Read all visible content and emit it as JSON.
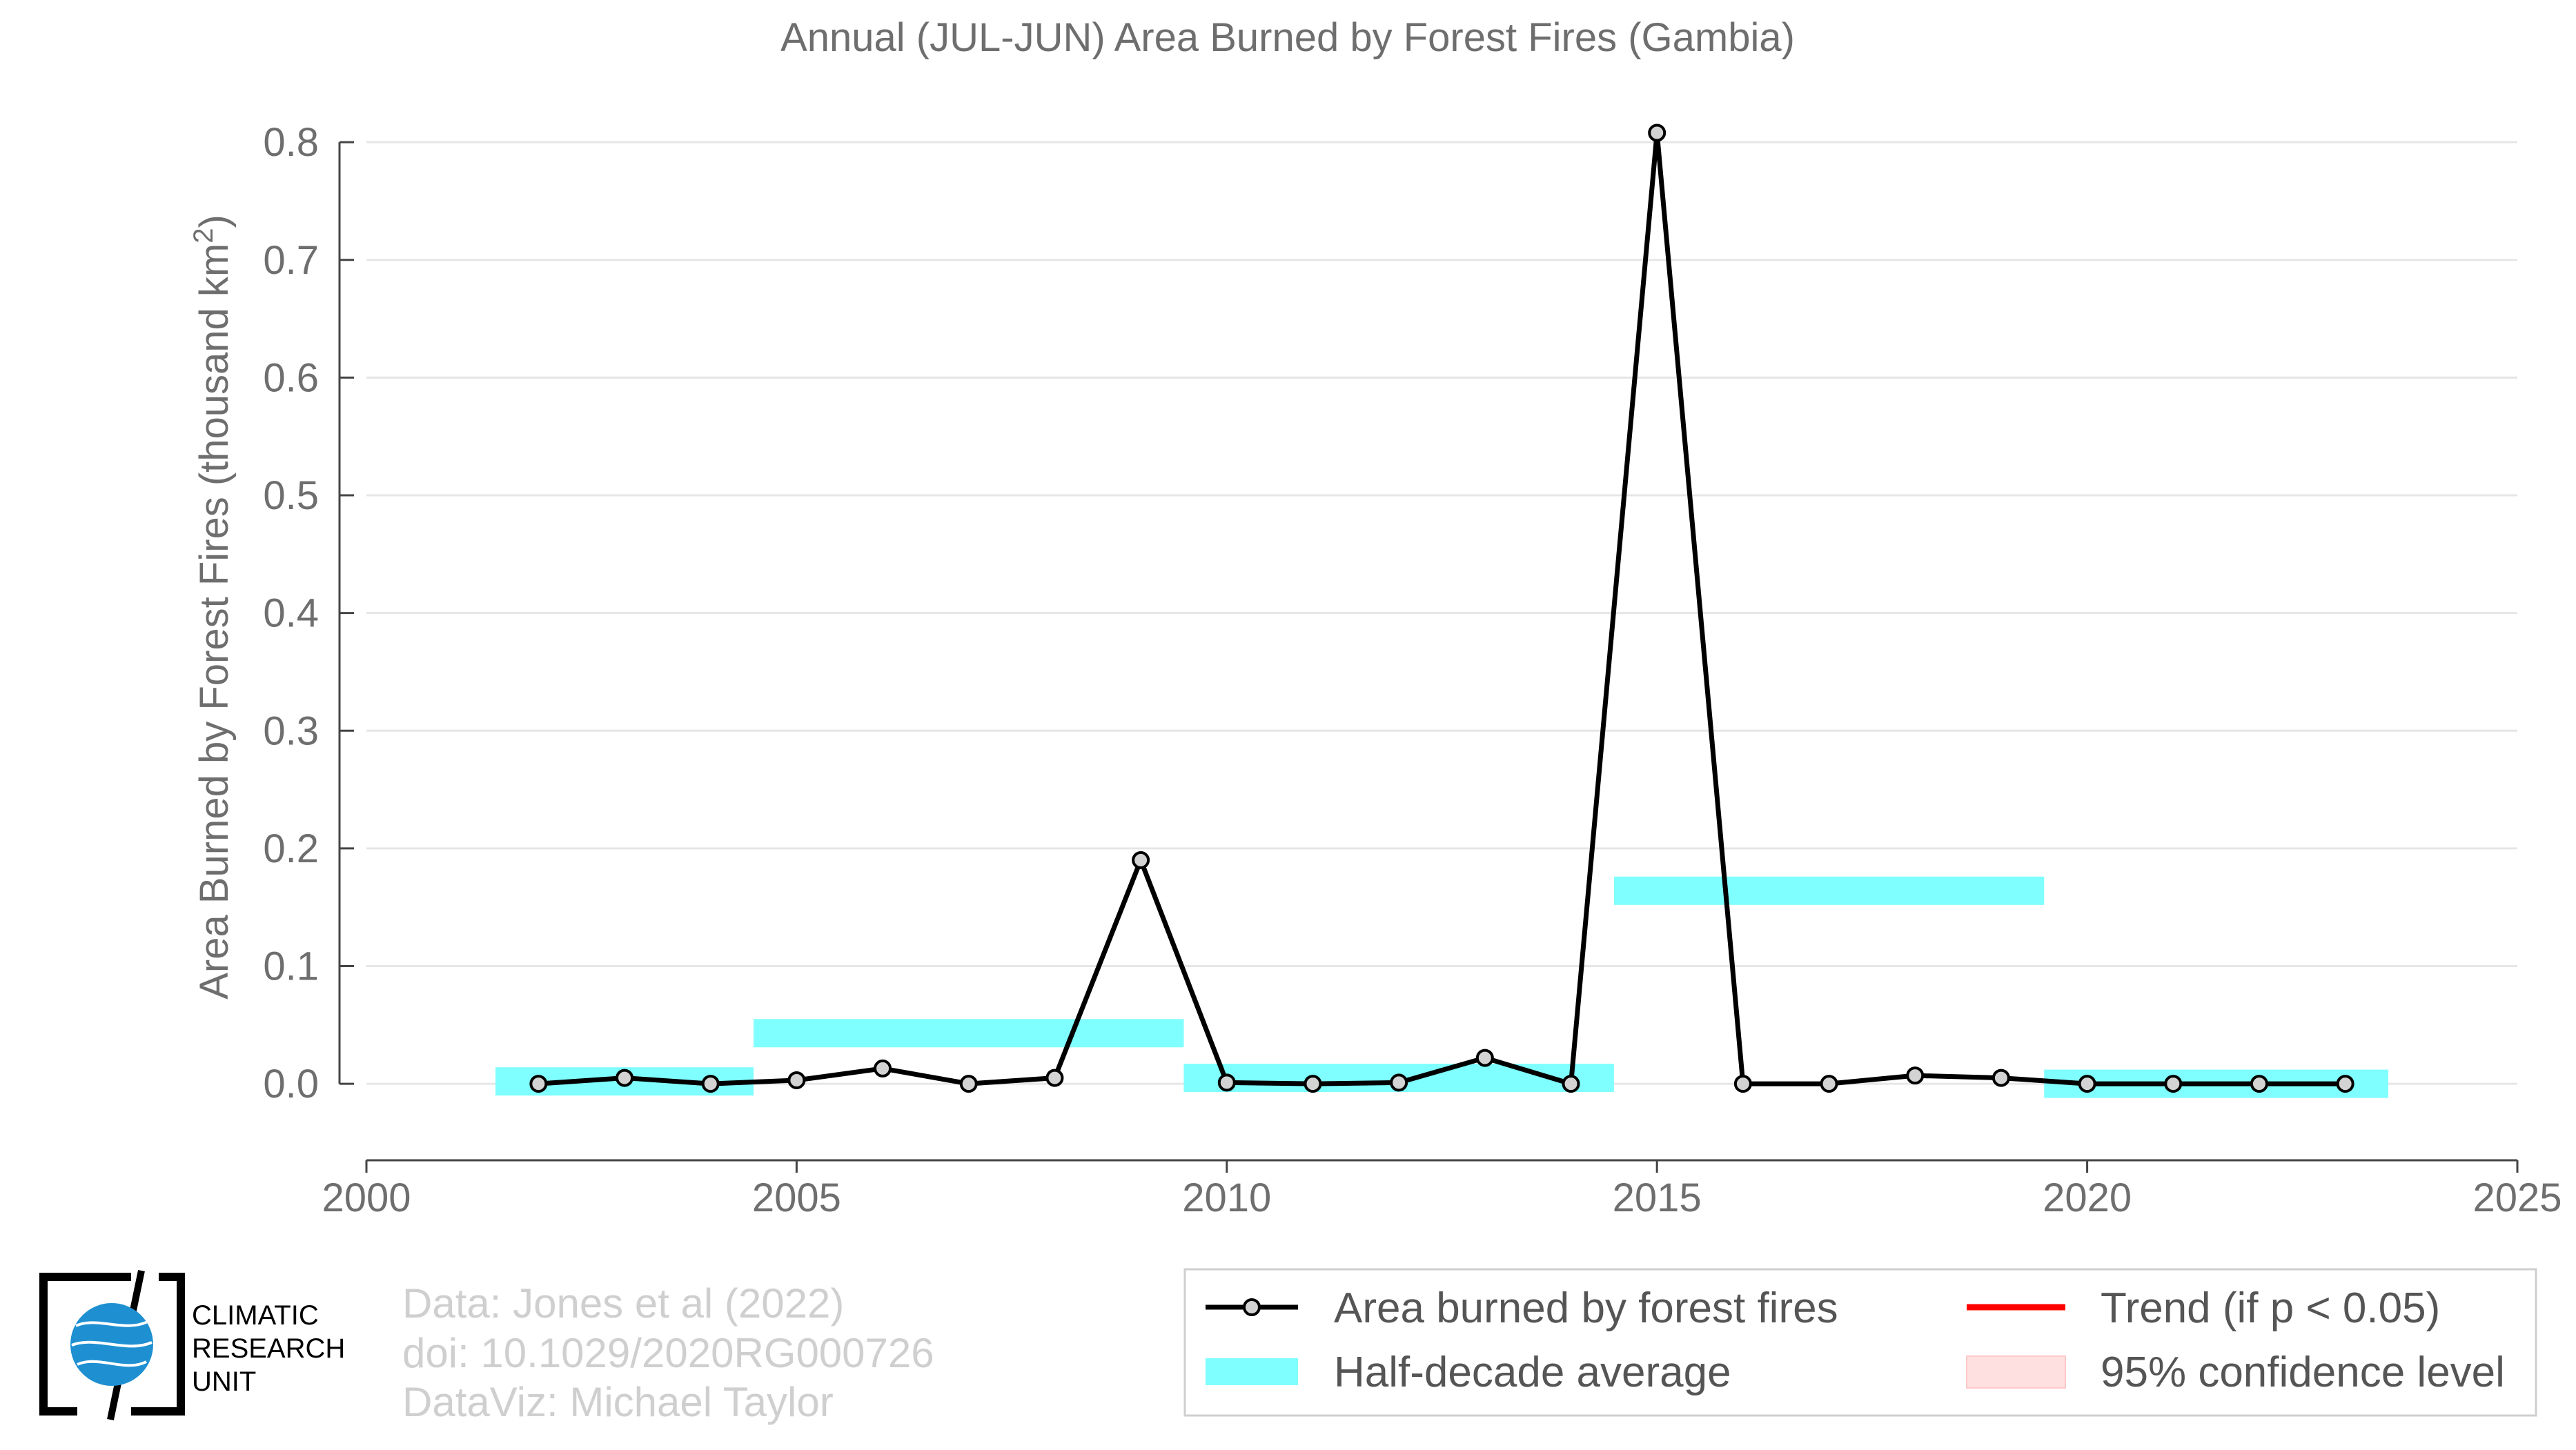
{
  "chart_data": {
    "type": "line",
    "title": "Annual (JUL-JUN) Area Burned by Forest Fires (Gambia)",
    "ylabel_main": "Area Burned by Forest Fires (thousand km",
    "ylabel_sup": "2",
    "ylabel_close": ")",
    "xlim": [
      2000,
      2025
    ],
    "ylim": [
      -0.065,
      0.83
    ],
    "x_ticks": [
      2000,
      2005,
      2010,
      2015,
      2020,
      2025
    ],
    "x_tick_labels": [
      "2000",
      "2005",
      "2010",
      "2015",
      "2020",
      "2025"
    ],
    "y_ticks": [
      0.0,
      0.1,
      0.2,
      0.3,
      0.4,
      0.5,
      0.6,
      0.7,
      0.8
    ],
    "y_tick_labels": [
      "0.0",
      "0.1",
      "0.2",
      "0.3",
      "0.4",
      "0.5",
      "0.6",
      "0.7",
      "0.8"
    ],
    "grid": "horizontal",
    "legend_position": "bottom-right",
    "series": [
      {
        "name": "Area burned by forest fires",
        "color": "#000000",
        "marker_fill": "#d3d3d3",
        "x": [
          2002,
          2003,
          2004,
          2005,
          2006,
          2007,
          2008,
          2009,
          2010,
          2011,
          2012,
          2013,
          2014,
          2015,
          2016,
          2017,
          2018,
          2019,
          2020,
          2021,
          2022,
          2023
        ],
        "y": [
          0.0,
          0.005,
          0.0,
          0.003,
          0.013,
          0.0,
          0.005,
          0.19,
          0.001,
          0.0,
          0.001,
          0.022,
          0.0,
          0.808,
          0.0,
          0.0,
          0.007,
          0.005,
          0.0,
          0.0,
          0.0,
          0.0
        ]
      }
    ],
    "half_decade_averages": {
      "name": "Half-decade average",
      "color": "#7fffff",
      "segments": [
        {
          "x_start": 2001.5,
          "x_end": 2004.5,
          "value": 0.002
        },
        {
          "x_start": 2004.5,
          "x_end": 2009.5,
          "value": 0.043
        },
        {
          "x_start": 2009.5,
          "x_end": 2014.5,
          "value": 0.005
        },
        {
          "x_start": 2014.5,
          "x_end": 2019.5,
          "value": 0.164
        },
        {
          "x_start": 2019.5,
          "x_end": 2023.5,
          "value": 0.0
        }
      ]
    },
    "legend": [
      {
        "label": "Area burned by forest fires",
        "kind": "line-marker",
        "color": "#000000"
      },
      {
        "label": "Trend (if p < 0.05)",
        "kind": "line",
        "color": "#ff0000"
      },
      {
        "label": "Half-decade average",
        "kind": "band",
        "color": "#7fffff"
      },
      {
        "label": "95% confidence level",
        "kind": "patch",
        "color": "#ffe0e0"
      }
    ]
  },
  "credits": {
    "line1": "Data: Jones et al (2022)",
    "line2": "doi: 10.1029/2020RG000726",
    "line3": "DataViz: Michael Taylor"
  },
  "logo": {
    "line1": "CLIMATIC",
    "line2": "RESEARCH",
    "line3": "UNIT",
    "globe_color": "#1e90d2"
  }
}
